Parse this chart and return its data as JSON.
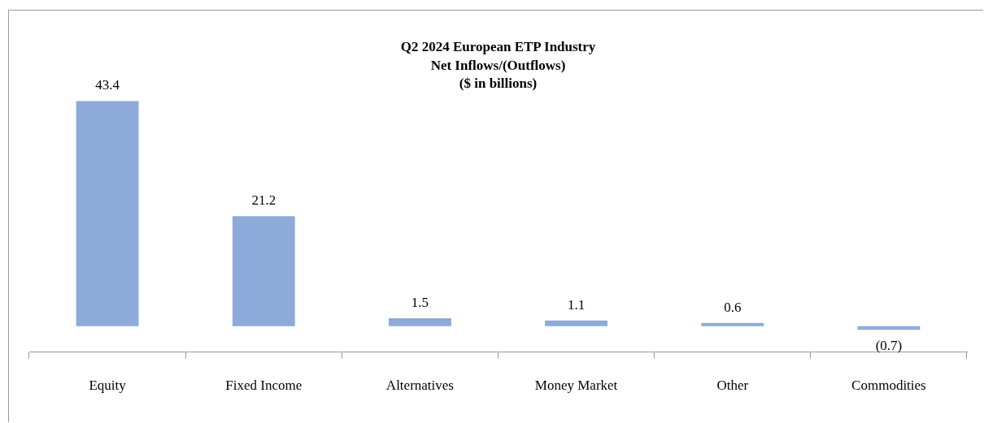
{
  "chart_data": {
    "type": "bar",
    "title": "Q2 2024 European ETP Industry\nNet Inflows/(Outflows)\n($ in billions)",
    "categories": [
      "Equity",
      "Fixed Income",
      "Alternatives",
      "Money Market",
      "Other",
      "Commodities"
    ],
    "values": [
      43.4,
      21.2,
      1.5,
      1.1,
      0.6,
      -0.7
    ],
    "value_labels": [
      "43.4",
      "21.2",
      "1.5",
      "1.1",
      "0.6",
      "(0.7)"
    ],
    "color": "#8eaadb",
    "tick_labels": "x",
    "grid": false,
    "legend": false
  }
}
